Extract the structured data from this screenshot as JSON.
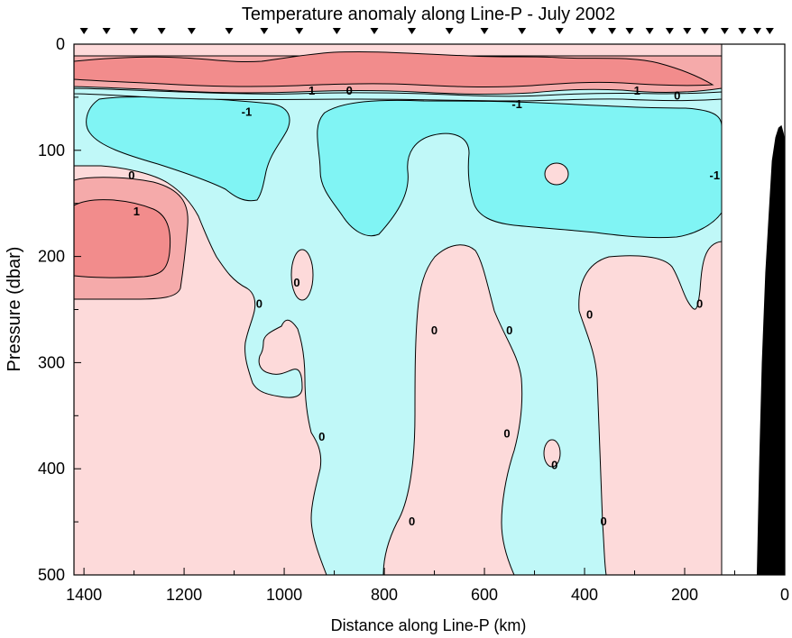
{
  "chart_data": {
    "type": "contour",
    "title": "Temperature anomaly along Line-P - July 2002",
    "xlabel": "Distance along Line-P (km)",
    "ylabel": "Pressure (dbar)",
    "x_axis": {
      "range": [
        1420,
        0
      ],
      "reversed": true,
      "ticks": [
        1400,
        1200,
        1000,
        800,
        600,
        400,
        200,
        0
      ]
    },
    "y_axis": {
      "range": [
        0,
        500
      ],
      "reversed": true,
      "ticks": [
        0,
        100,
        200,
        300,
        400,
        500
      ]
    },
    "grid": false,
    "legend": "none",
    "station_markers_km": [
      1400,
      1355,
      1300,
      1245,
      1185,
      1110,
      1040,
      970,
      895,
      820,
      745,
      670,
      600,
      525,
      450,
      385,
      345,
      310,
      270,
      230,
      195,
      160,
      120,
      85,
      55,
      30
    ],
    "contour_levels": [
      -1,
      0,
      1
    ],
    "contour_labels": [
      {
        "text": "1",
        "x_km": 945,
        "p_dbar": 44
      },
      {
        "text": "0",
        "x_km": 870,
        "p_dbar": 44
      },
      {
        "text": "-1",
        "x_km": 1075,
        "p_dbar": 64
      },
      {
        "text": "-1",
        "x_km": 535,
        "p_dbar": 57
      },
      {
        "text": "1",
        "x_km": 295,
        "p_dbar": 44
      },
      {
        "text": "0",
        "x_km": 215,
        "p_dbar": 49
      },
      {
        "text": "0",
        "x_km": 1305,
        "p_dbar": 124
      },
      {
        "text": "1",
        "x_km": 1295,
        "p_dbar": 158
      },
      {
        "text": "-1",
        "x_km": 140,
        "p_dbar": 124
      },
      {
        "text": "0",
        "x_km": 1050,
        "p_dbar": 245
      },
      {
        "text": "0",
        "x_km": 975,
        "p_dbar": 225
      },
      {
        "text": "0",
        "x_km": 700,
        "p_dbar": 270
      },
      {
        "text": "0",
        "x_km": 550,
        "p_dbar": 270
      },
      {
        "text": "0",
        "x_km": 390,
        "p_dbar": 255
      },
      {
        "text": "0",
        "x_km": 170,
        "p_dbar": 245
      },
      {
        "text": "0",
        "x_km": 925,
        "p_dbar": 370
      },
      {
        "text": "0",
        "x_km": 555,
        "p_dbar": 367
      },
      {
        "text": "0",
        "x_km": 460,
        "p_dbar": 397
      },
      {
        "text": "0",
        "x_km": 745,
        "p_dbar": 450
      },
      {
        "text": "0",
        "x_km": 362,
        "p_dbar": 450
      }
    ],
    "data_coverage_km": [
      1420,
      125
    ],
    "bathymetry": [
      {
        "x": 55,
        "depth": 500
      },
      {
        "x": 50,
        "depth": 390
      },
      {
        "x": 45,
        "depth": 300
      },
      {
        "x": 38,
        "depth": 215
      },
      {
        "x": 30,
        "depth": 150
      },
      {
        "x": 25,
        "depth": 110
      },
      {
        "x": 18,
        "depth": 88
      },
      {
        "x": 12,
        "depth": 79
      },
      {
        "x": 7,
        "depth": 77
      },
      {
        "x": 3,
        "depth": 84
      },
      {
        "x": 0,
        "depth": 92
      }
    ],
    "colors": {
      "above_1": "#f28c8c",
      "from_0_to_1": "#f5aaaa",
      "above_0": "#fddada",
      "from_neg1_to_0": "#c0f8f8",
      "below_neg1": "#80f4f4",
      "bathymetry": "#000000"
    }
  }
}
